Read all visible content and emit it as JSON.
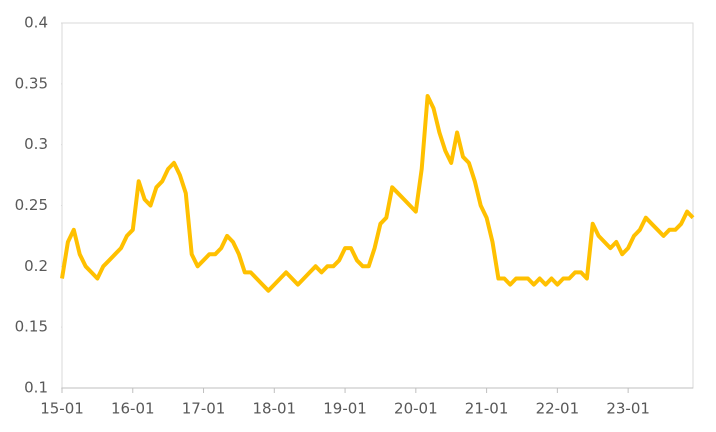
{
  "chart_data": {
    "type": "line",
    "x": [
      "15-01",
      "15-02",
      "15-03",
      "15-04",
      "15-05",
      "15-06",
      "15-07",
      "15-08",
      "15-09",
      "15-10",
      "15-11",
      "15-12",
      "16-01",
      "16-02",
      "16-03",
      "16-04",
      "16-05",
      "16-06",
      "16-07",
      "16-08",
      "16-09",
      "16-10",
      "16-11",
      "16-12",
      "17-01",
      "17-02",
      "17-03",
      "17-04",
      "17-05",
      "17-06",
      "17-07",
      "17-08",
      "17-09",
      "17-10",
      "17-11",
      "17-12",
      "18-01",
      "18-02",
      "18-03",
      "18-04",
      "18-05",
      "18-06",
      "18-07",
      "18-08",
      "18-09",
      "18-10",
      "18-11",
      "18-12",
      "19-01",
      "19-02",
      "19-03",
      "19-04",
      "19-05",
      "19-06",
      "19-07",
      "19-08",
      "19-09",
      "19-10",
      "19-11",
      "19-12",
      "20-01",
      "20-02",
      "20-03",
      "20-04",
      "20-05",
      "20-06",
      "20-07",
      "20-08",
      "20-09",
      "20-10",
      "20-11",
      "20-12",
      "21-01",
      "21-02",
      "21-03",
      "21-04",
      "21-05",
      "21-06",
      "21-07",
      "21-08",
      "21-09",
      "21-10",
      "21-11",
      "21-12",
      "22-01",
      "22-02",
      "22-03",
      "22-04",
      "22-05",
      "22-06",
      "22-07",
      "22-08",
      "22-09",
      "22-10",
      "22-11",
      "22-12",
      "23-01",
      "23-02",
      "23-03",
      "23-04",
      "23-05",
      "23-06",
      "23-07",
      "23-08",
      "23-09",
      "23-10",
      "23-11",
      "23-12"
    ],
    "series": [
      {
        "color": "#ffc000",
        "values": [
          0.19,
          0.22,
          0.23,
          0.21,
          0.2,
          0.195,
          0.19,
          0.2,
          0.205,
          0.21,
          0.215,
          0.225,
          0.23,
          0.27,
          0.255,
          0.25,
          0.265,
          0.27,
          0.28,
          0.285,
          0.275,
          0.26,
          0.21,
          0.2,
          0.205,
          0.21,
          0.21,
          0.215,
          0.225,
          0.22,
          0.21,
          0.195,
          0.195,
          0.19,
          0.185,
          0.18,
          0.185,
          0.19,
          0.195,
          0.19,
          0.185,
          0.19,
          0.195,
          0.2,
          0.195,
          0.2,
          0.2,
          0.205,
          0.215,
          0.215,
          0.205,
          0.2,
          0.2,
          0.215,
          0.235,
          0.24,
          0.265,
          0.26,
          0.255,
          0.25,
          0.245,
          0.28,
          0.34,
          0.33,
          0.31,
          0.295,
          0.285,
          0.31,
          0.29,
          0.285,
          0.27,
          0.25,
          0.24,
          0.22,
          0.19,
          0.19,
          0.185,
          0.19,
          0.19,
          0.19,
          0.185,
          0.19,
          0.185,
          0.19,
          0.185,
          0.19,
          0.19,
          0.195,
          0.195,
          0.19,
          0.235,
          0.225,
          0.22,
          0.215,
          0.22,
          0.21,
          0.215,
          0.225,
          0.23,
          0.24,
          0.235,
          0.23,
          0.225,
          0.23,
          0.23,
          0.235,
          0.245,
          0.24
        ]
      }
    ],
    "xticks": [
      "15-01",
      "16-01",
      "17-01",
      "18-01",
      "19-01",
      "20-01",
      "21-01",
      "22-01",
      "23-01"
    ],
    "ylim": [
      0.1,
      0.4
    ],
    "yticks": [
      0.1,
      0.15,
      0.2,
      0.25,
      0.3,
      0.35,
      0.4
    ]
  }
}
